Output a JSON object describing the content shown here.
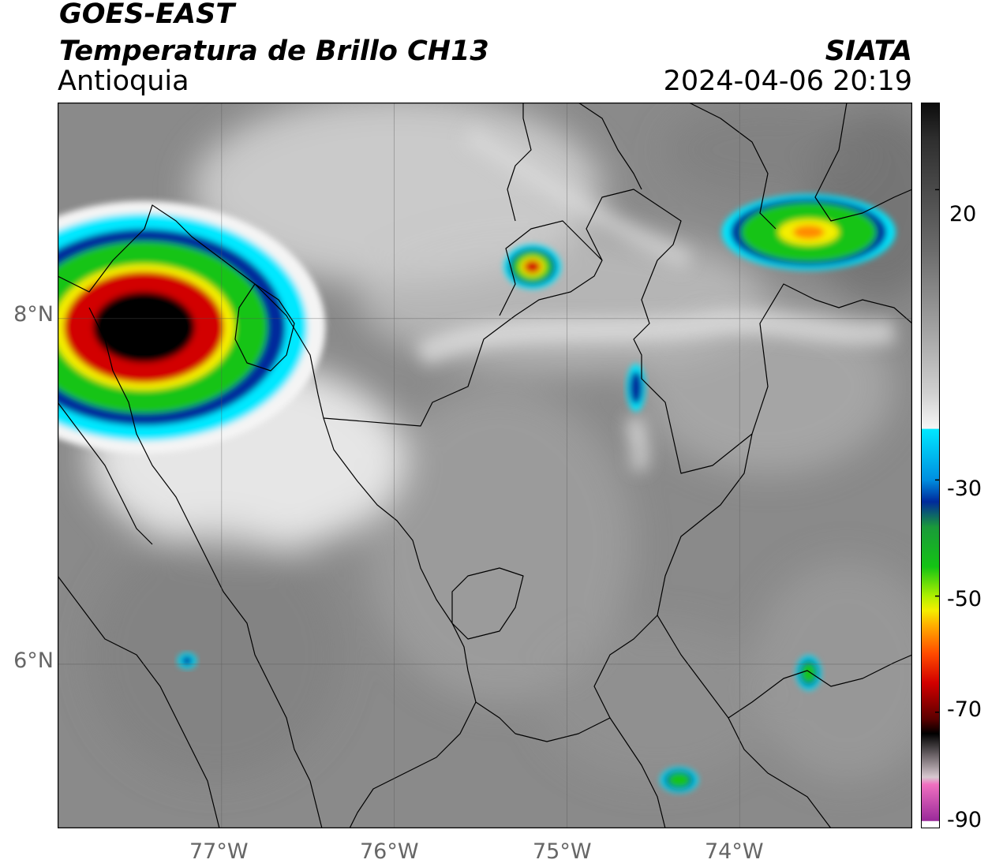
{
  "header": {
    "satellite": "GOES-EAST",
    "product": "Temperatura de Brillo CH13",
    "agency": "SIATA",
    "region": "Antioquia",
    "datetime": "2024-04-06 20:19"
  },
  "map": {
    "lat_ticks": [
      "8°N",
      "6°N"
    ],
    "lon_ticks": [
      "77°W",
      "76°W",
      "75°W",
      "74°W"
    ],
    "lon_range": [
      -77.95,
      -73.0
    ],
    "lat_range": [
      5.05,
      9.25
    ],
    "background_gray": "#8a8a8a",
    "cold_cloud_cells": [
      {
        "lon": -77.45,
        "lat": 7.95,
        "min_temp_c": -70
      },
      {
        "lon": -75.2,
        "lat": 8.3,
        "min_temp_c": -58
      },
      {
        "lon": -73.6,
        "lat": 8.5,
        "min_temp_c": -55
      },
      {
        "lon": -74.6,
        "lat": 7.6,
        "min_temp_c": -35
      },
      {
        "lon": -73.6,
        "lat": 5.95,
        "min_temp_c": -40
      },
      {
        "lon": -74.35,
        "lat": 5.33,
        "min_temp_c": -40
      },
      {
        "lon": -77.2,
        "lat": 6.02,
        "min_temp_c": -33
      }
    ]
  },
  "colorbar": {
    "tick_labels": [
      "20",
      "-30",
      "-50",
      "-70",
      "-90"
    ],
    "tick_values": [
      20,
      -30,
      -50,
      -70,
      -90
    ],
    "range": [
      -90,
      35
    ],
    "colors": {
      "magenta": "#b03aa8",
      "black": "#000000",
      "red": "#d20000",
      "orange": "#ff8a00",
      "yellow": "#f5ee00",
      "green": "#14c414",
      "dark_blue": "#002a9c",
      "cyan": "#00e8ff",
      "white": "#f4f4f4"
    }
  }
}
